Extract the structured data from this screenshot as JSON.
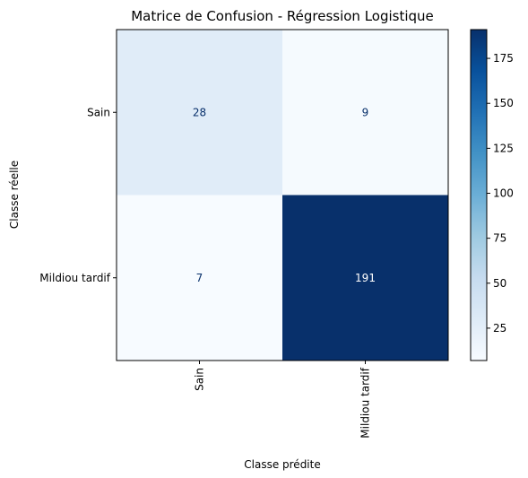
{
  "chart_data": {
    "type": "heatmap",
    "title": "Matrice de Confusion - Régression Logistique",
    "xlabel": "Classe prédite",
    "ylabel": "Classe réelle",
    "x_categories": [
      "Sain",
      "Mildiou tardif"
    ],
    "y_categories": [
      "Sain",
      "Mildiou tardif"
    ],
    "values": [
      [
        28,
        9
      ],
      [
        7,
        191
      ]
    ],
    "colormap": "Blues",
    "colorbar": {
      "range": [
        7,
        191
      ],
      "ticks": [
        25,
        50,
        75,
        100,
        125,
        150,
        175
      ]
    }
  }
}
